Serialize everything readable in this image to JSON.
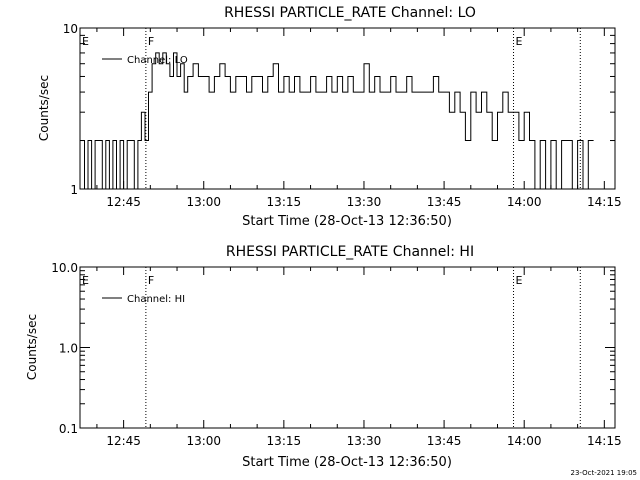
{
  "footer": {
    "timestamp": "23-Oct-2021 19:05"
  },
  "chart_data": [
    {
      "type": "line",
      "title": "RHESSI PARTICLE_RATE Channel: LO",
      "xlabel": "Start Time (28-Oct-13 12:36:50)",
      "ylabel": "Counts/sec",
      "yscale": "log",
      "ylim": [
        1,
        10
      ],
      "xlim": [
        "12:36:50",
        "14:17:00"
      ],
      "xticks": [
        "12:45",
        "13:00",
        "13:15",
        "13:30",
        "13:45",
        "14:00",
        "14:15"
      ],
      "yticks": [
        "1",
        "10"
      ],
      "legend": {
        "entries": [
          "Channel: LO"
        ],
        "placement": "top-left"
      },
      "grid": false,
      "markers": [
        {
          "label": "E",
          "time": "12:36:50",
          "style": "solid"
        },
        {
          "label": "F",
          "time": "12:49:10",
          "style": "dotted"
        },
        {
          "label": "E",
          "time": "13:58:00",
          "style": "dotted"
        },
        {
          "label": "",
          "time": "14:10:30",
          "style": "dotted"
        }
      ],
      "series": [
        {
          "x": [
            "12:36:50",
            "12:37:40",
            "12:38:20",
            "12:39:00",
            "12:39:40",
            "12:40:20",
            "12:41:00",
            "12:41:40",
            "12:42:20",
            "12:43:00",
            "12:43:40",
            "12:44:20",
            "12:45:00",
            "12:45:40",
            "12:46:20",
            "12:47:00",
            "12:47:40",
            "12:48:20",
            "12:49:00",
            "12:49:40",
            "12:50:20",
            "12:51:00",
            "12:51:40",
            "12:52:20",
            "12:53:00",
            "12:53:40",
            "12:54:20",
            "12:55:00",
            "12:55:40",
            "12:56:20",
            "12:57:00",
            "12:58:00",
            "12:59:00",
            "13:00:00",
            "13:01:00",
            "13:02:00",
            "13:03:00",
            "13:04:00",
            "13:05:00",
            "13:06:00",
            "13:07:00",
            "13:08:00",
            "13:09:00",
            "13:10:00",
            "13:11:00",
            "13:12:00",
            "13:13:00",
            "13:14:00",
            "13:15:00",
            "13:16:00",
            "13:17:00",
            "13:18:00",
            "13:19:00",
            "13:20:00",
            "13:21:00",
            "13:22:00",
            "13:23:00",
            "13:24:00",
            "13:25:00",
            "13:26:00",
            "13:27:00",
            "13:28:00",
            "13:29:00",
            "13:30:00",
            "13:31:00",
            "13:32:00",
            "13:33:00",
            "13:34:00",
            "13:35:00",
            "13:36:00",
            "13:37:00",
            "13:38:00",
            "13:39:00",
            "13:40:00",
            "13:41:00",
            "13:42:00",
            "13:43:00",
            "13:44:00",
            "13:45:00",
            "13:46:00",
            "13:47:00",
            "13:48:00",
            "13:49:00",
            "13:50:00",
            "13:51:00",
            "13:52:00",
            "13:53:00",
            "13:54:00",
            "13:55:00",
            "13:56:00",
            "13:57:00",
            "13:58:00",
            "13:59:00",
            "14:00:00",
            "14:01:00",
            "14:02:00",
            "14:03:00",
            "14:04:00",
            "14:05:00",
            "14:06:00",
            "14:07:00",
            "14:08:00",
            "14:09:00",
            "14:10:00",
            "14:11:00",
            "14:12:00"
          ],
          "y": [
            2,
            1,
            2,
            1,
            2,
            2,
            1,
            2,
            1,
            2,
            1,
            2,
            1,
            2,
            2,
            1,
            2,
            3,
            2,
            4,
            6,
            7,
            6,
            7,
            6,
            5,
            7,
            5,
            6,
            4,
            5,
            6,
            5,
            5,
            4,
            5,
            6,
            5,
            4,
            5,
            5,
            4,
            5,
            5,
            4,
            5,
            6,
            4,
            5,
            4,
            5,
            4,
            4,
            5,
            4,
            4,
            5,
            4,
            5,
            4,
            5,
            4,
            4,
            6,
            4,
            5,
            4,
            4,
            5,
            4,
            4,
            5,
            4,
            4,
            4,
            4,
            5,
            4,
            4,
            3,
            4,
            3,
            2,
            4,
            3,
            4,
            3,
            2,
            3,
            4,
            3,
            3,
            2,
            3,
            2,
            1,
            2,
            1,
            2,
            1,
            2,
            2,
            1,
            2,
            1,
            2
          ]
        }
      ]
    },
    {
      "type": "line",
      "title": "RHESSI PARTICLE_RATE Channel: HI",
      "xlabel": "Start Time (28-Oct-13 12:36:50)",
      "ylabel": "Counts/sec",
      "yscale": "log",
      "ylim": [
        0.1,
        10
      ],
      "xlim": [
        "12:36:50",
        "14:17:00"
      ],
      "xticks": [
        "12:45",
        "13:00",
        "13:15",
        "13:30",
        "13:45",
        "14:00",
        "14:15"
      ],
      "yticks": [
        "0.1",
        "1.0",
        "10.0"
      ],
      "legend": {
        "entries": [
          "Channel: HI"
        ],
        "placement": "top-left"
      },
      "grid": false,
      "markers": [
        {
          "label": "E",
          "time": "12:36:50",
          "style": "solid"
        },
        {
          "label": "F",
          "time": "12:49:10",
          "style": "dotted"
        },
        {
          "label": "E",
          "time": "13:58:00",
          "style": "dotted"
        },
        {
          "label": "",
          "time": "14:10:30",
          "style": "dotted"
        }
      ],
      "series": [
        {
          "x": [],
          "y": []
        }
      ]
    }
  ]
}
